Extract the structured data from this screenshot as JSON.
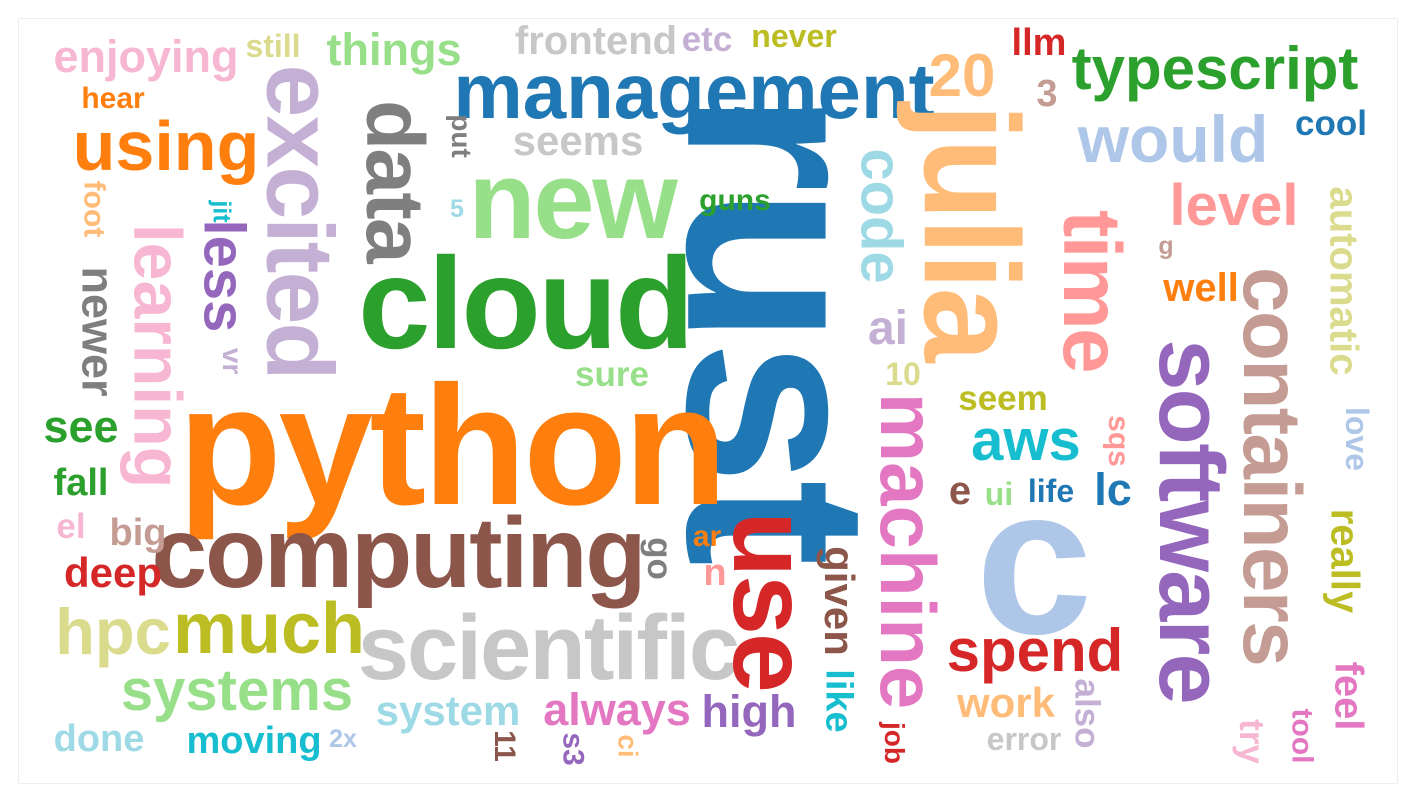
{
  "words": [
    {
      "text": "rust",
      "color": "#1f77b4"
    },
    {
      "text": "python",
      "color": "#ff7f0e"
    },
    {
      "text": "cloud",
      "color": "#2ca02c"
    },
    {
      "text": "computing",
      "color": "#8c564b"
    },
    {
      "text": "c",
      "color": "#aec7e8"
    },
    {
      "text": "new",
      "color": "#98df8a"
    },
    {
      "text": "management",
      "color": "#1f77b4"
    },
    {
      "text": "julia",
      "color": "#ffbb78"
    },
    {
      "text": "scientific",
      "color": "#c7c7c7"
    },
    {
      "text": "software",
      "color": "#9467bd"
    },
    {
      "text": "containers",
      "color": "#c49c94"
    },
    {
      "text": "time",
      "color": "#ff9896"
    },
    {
      "text": "use",
      "color": "#d62728"
    },
    {
      "text": "excited",
      "color": "#c5b0d5"
    },
    {
      "text": "data",
      "color": "#7f7f7f"
    },
    {
      "text": "machine",
      "color": "#e377c2"
    },
    {
      "text": "learning",
      "color": "#f7b6d2"
    },
    {
      "text": "using",
      "color": "#ff7f0e"
    },
    {
      "text": "typescript",
      "color": "#2ca02c"
    },
    {
      "text": "would",
      "color": "#aec7e8"
    },
    {
      "text": "much",
      "color": "#bcbd22"
    },
    {
      "text": "hpc",
      "color": "#dbdb8d"
    },
    {
      "text": "systems",
      "color": "#98df8a"
    },
    {
      "text": "spend",
      "color": "#d62728"
    },
    {
      "text": "aws",
      "color": "#17becf"
    },
    {
      "text": "code",
      "color": "#9edae5"
    },
    {
      "text": "20",
      "color": "#ffbb78"
    },
    {
      "text": "level",
      "color": "#ff9896"
    },
    {
      "text": "things",
      "color": "#98df8a"
    },
    {
      "text": "enjoying",
      "color": "#f7b6d2"
    },
    {
      "text": "frontend",
      "color": "#c7c7c7"
    },
    {
      "text": "seems",
      "color": "#c7c7c7"
    },
    {
      "text": "less",
      "color": "#9467bd"
    },
    {
      "text": "newer",
      "color": "#7f7f7f"
    },
    {
      "text": "automatic",
      "color": "#dbdb8d"
    },
    {
      "text": "given",
      "color": "#8c564b"
    },
    {
      "text": "like",
      "color": "#17becf"
    },
    {
      "text": "always",
      "color": "#e377c2"
    },
    {
      "text": "high",
      "color": "#9467bd"
    },
    {
      "text": "system",
      "color": "#9edae5"
    },
    {
      "text": "work",
      "color": "#ffbb78"
    },
    {
      "text": "really",
      "color": "#bcbd22"
    },
    {
      "text": "feel",
      "color": "#e377c2"
    },
    {
      "text": "deep",
      "color": "#d62728"
    },
    {
      "text": "well",
      "color": "#ff7f0e"
    },
    {
      "text": "ai",
      "color": "#c5b0d5"
    },
    {
      "text": "see",
      "color": "#2ca02c"
    },
    {
      "text": "moving",
      "color": "#17becf"
    },
    {
      "text": "done",
      "color": "#9edae5"
    },
    {
      "text": "fall",
      "color": "#2ca02c"
    },
    {
      "text": "big",
      "color": "#c49c94"
    },
    {
      "text": "el",
      "color": "#f7b6d2"
    },
    {
      "text": "go",
      "color": "#7f7f7f"
    },
    {
      "text": "ar",
      "color": "#ff7f0e"
    },
    {
      "text": "n",
      "color": "#ff9896"
    },
    {
      "text": "sure",
      "color": "#98df8a"
    },
    {
      "text": "vr",
      "color": "#c5b0d5"
    },
    {
      "text": "10",
      "color": "#dbdb8d"
    },
    {
      "text": "seem",
      "color": "#bcbd22"
    },
    {
      "text": "e",
      "color": "#8c564b"
    },
    {
      "text": "ui",
      "color": "#98df8a"
    },
    {
      "text": "life",
      "color": "#1f77b4"
    },
    {
      "text": "lc",
      "color": "#1f77b4"
    },
    {
      "text": "sqs",
      "color": "#ff9896"
    },
    {
      "text": "love",
      "color": "#aec7e8"
    },
    {
      "text": "cool",
      "color": "#1f77b4"
    },
    {
      "text": "llm",
      "color": "#d62728"
    },
    {
      "text": "3",
      "color": "#c49c94"
    },
    {
      "text": "etc",
      "color": "#c5b0d5"
    },
    {
      "text": "never",
      "color": "#bcbd22"
    },
    {
      "text": "still",
      "color": "#dbdb8d"
    },
    {
      "text": "hear",
      "color": "#ff7f0e"
    },
    {
      "text": "foot",
      "color": "#ffbb78"
    },
    {
      "text": "jit",
      "color": "#17becf"
    },
    {
      "text": "put",
      "color": "#7f7f7f"
    },
    {
      "text": "5",
      "color": "#9edae5"
    },
    {
      "text": "guns",
      "color": "#2ca02c"
    },
    {
      "text": "g",
      "color": "#c49c94"
    },
    {
      "text": "2x",
      "color": "#aec7e8"
    },
    {
      "text": "11",
      "color": "#8c564b"
    },
    {
      "text": "s3",
      "color": "#9467bd"
    },
    {
      "text": "ci",
      "color": "#ffbb78"
    },
    {
      "text": "job",
      "color": "#d62728"
    },
    {
      "text": "error",
      "color": "#c7c7c7"
    },
    {
      "text": "also",
      "color": "#c5b0d5"
    },
    {
      "text": "try",
      "color": "#f7b6d2"
    },
    {
      "text": "tool",
      "color": "#e377c2"
    }
  ]
}
